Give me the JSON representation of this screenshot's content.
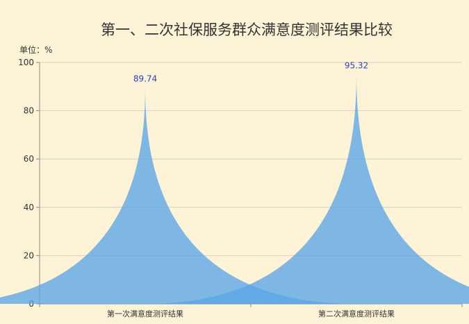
{
  "chart_data": {
    "type": "bar",
    "bar_style": "pictorial-spike",
    "title": "第一、二次社保服务群众满意度测评结果比较",
    "unit_label": "单位：%",
    "categories": [
      "第一次满意度测评结果",
      "第二次满意度测评结果"
    ],
    "values": [
      89.74,
      95.32
    ],
    "data_labels": [
      "89.74",
      "95.32"
    ],
    "ylim": [
      0,
      100
    ],
    "yticks": [
      0,
      20,
      40,
      60,
      80,
      100
    ],
    "ytick_labels": [
      "0",
      "20",
      "40",
      "60",
      "80",
      "100"
    ],
    "grid": true,
    "legend": "none",
    "colors": {
      "background": "#fdf3d6",
      "bar": "#5aa5e8",
      "data_label": "#2a3fc7",
      "gridline": "#e4c9c5",
      "axis": "#8a8a8a",
      "text": "#333333"
    }
  }
}
